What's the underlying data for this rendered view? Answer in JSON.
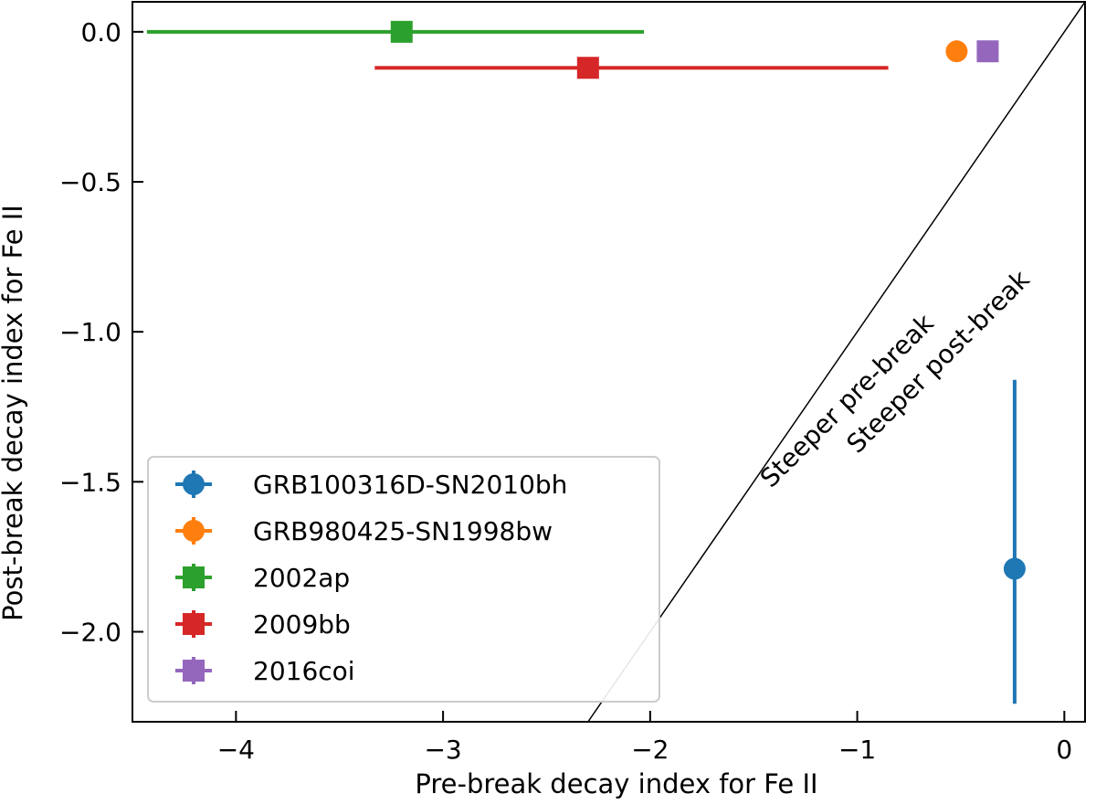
{
  "chart_data": {
    "type": "scatter",
    "xlabel": "Pre-break decay index for Fe II",
    "ylabel": "Post-break decay index for Fe II",
    "xlim": [
      -4.5,
      0.1
    ],
    "ylim": [
      -2.3,
      0.1
    ],
    "xticks": [
      -4,
      -3,
      -2,
      -1,
      0
    ],
    "xtick_labels": [
      "−4",
      "−3",
      "−2",
      "−1",
      "0"
    ],
    "yticks": [
      0.0,
      -0.5,
      -1.0,
      -1.5,
      -2.0
    ],
    "ytick_labels": [
      "0.0",
      "−0.5",
      "−1.0",
      "−1.5",
      "−2.0"
    ],
    "grid": false,
    "legend_position": "lower-left",
    "series": [
      {
        "name": "GRB100316D-SN2010bh",
        "color": "#1f77b4",
        "marker": "circle",
        "x": -0.24,
        "y": -1.79,
        "x_err": [
          0.0,
          0.0
        ],
        "y_err": [
          0.45,
          0.63
        ]
      },
      {
        "name": "GRB980425-SN1998bw",
        "color": "#ff7f0e",
        "marker": "circle",
        "x": -0.52,
        "y": -0.065,
        "x_err": [
          0.04,
          0.04
        ],
        "y_err": [
          0.01,
          0.01
        ]
      },
      {
        "name": "2002ap",
        "color": "#2ca02c",
        "marker": "square",
        "x": -3.2,
        "y": 0.0,
        "x_err": [
          1.23,
          1.17
        ],
        "y_err": [
          0.0,
          0.0
        ]
      },
      {
        "name": "2009bb",
        "color": "#d62728",
        "marker": "square",
        "x": -2.3,
        "y": -0.12,
        "x_err": [
          1.03,
          1.45
        ],
        "y_err": [
          0.0,
          0.0
        ]
      },
      {
        "name": "2016coi",
        "color": "#9467bd",
        "marker": "square",
        "x": -0.37,
        "y": -0.065,
        "x_err": [
          0.03,
          0.03
        ],
        "y_err": [
          0.02,
          0.02
        ]
      }
    ],
    "reference_line": {
      "x": [
        -2.3,
        0.1
      ],
      "y": [
        -2.3,
        0.1
      ],
      "color": "#000000"
    },
    "annotations": [
      {
        "text": "Steeper pre-break",
        "x": -1.02,
        "y": -1.25
      },
      {
        "text": "Steeper post-break",
        "x": -0.58,
        "y": -1.12
      }
    ]
  }
}
